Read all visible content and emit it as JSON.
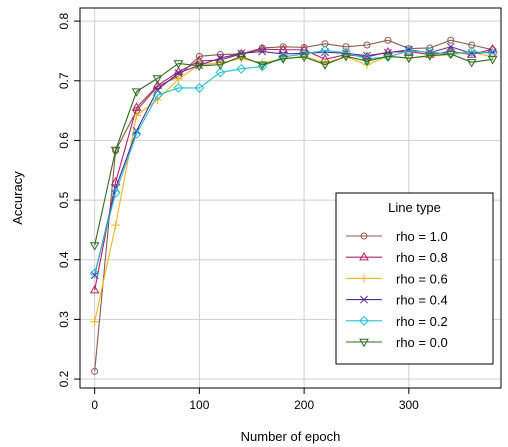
{
  "chart_data": {
    "type": "line",
    "xlabel": "Number of epoch",
    "ylabel": "Accuracy",
    "xlim": [
      -14,
      388
    ],
    "ylim": [
      0.185,
      0.822
    ],
    "x_ticks": [
      0,
      100,
      200,
      300
    ],
    "y_ticks": [
      0.2,
      0.3,
      0.4,
      0.5,
      0.6,
      0.7,
      0.8
    ],
    "legend": {
      "title": "Line type",
      "position": "bottom-right"
    },
    "x": [
      0,
      20,
      40,
      60,
      80,
      100,
      120,
      140,
      160,
      180,
      200,
      220,
      240,
      260,
      280,
      300,
      320,
      340,
      360,
      380
    ],
    "series": [
      {
        "name": "rho = 1.0",
        "color": "#8b5a4a",
        "marker": "circle",
        "values": [
          0.213,
          0.583,
          0.65,
          0.69,
          0.708,
          0.741,
          0.744,
          0.745,
          0.755,
          0.757,
          0.756,
          0.762,
          0.757,
          0.76,
          0.768,
          0.754,
          0.755,
          0.768,
          0.76,
          0.752
        ]
      },
      {
        "name": "rho = 0.8",
        "color": "#b3226b",
        "marker": "triangle-up",
        "values": [
          0.349,
          0.53,
          0.655,
          0.692,
          0.715,
          0.733,
          0.735,
          0.745,
          0.753,
          0.752,
          0.752,
          0.736,
          0.744,
          0.74,
          0.748,
          0.749,
          0.744,
          0.749,
          0.744,
          0.753
        ]
      },
      {
        "name": "rho = 0.6",
        "color": "#f4b41a",
        "marker": "plus",
        "values": [
          0.296,
          0.458,
          0.642,
          0.668,
          0.703,
          0.727,
          0.73,
          0.737,
          0.73,
          0.737,
          0.741,
          0.73,
          0.74,
          0.727,
          0.741,
          0.738,
          0.741,
          0.744,
          0.748,
          0.74
        ]
      },
      {
        "name": "rho = 0.4",
        "color": "#5a2a9a",
        "marker": "cross",
        "values": [
          0.374,
          0.52,
          0.616,
          0.685,
          0.713,
          0.726,
          0.738,
          0.746,
          0.749,
          0.745,
          0.746,
          0.748,
          0.746,
          0.742,
          0.747,
          0.752,
          0.747,
          0.757,
          0.746,
          0.748
        ]
      },
      {
        "name": "rho = 0.2",
        "color": "#22c0d0",
        "marker": "diamond",
        "values": [
          0.377,
          0.512,
          0.611,
          0.676,
          0.688,
          0.688,
          0.714,
          0.72,
          0.724,
          0.74,
          0.745,
          0.751,
          0.747,
          0.737,
          0.74,
          0.75,
          0.748,
          0.745,
          0.749,
          0.746
        ]
      },
      {
        "name": "rho = 0.0",
        "color": "#2e6b1e",
        "marker": "triangle-down",
        "values": [
          0.424,
          0.584,
          0.682,
          0.704,
          0.729,
          0.725,
          0.727,
          0.741,
          0.727,
          0.737,
          0.74,
          0.727,
          0.741,
          0.733,
          0.741,
          0.738,
          0.742,
          0.745,
          0.731,
          0.736
        ]
      }
    ]
  }
}
